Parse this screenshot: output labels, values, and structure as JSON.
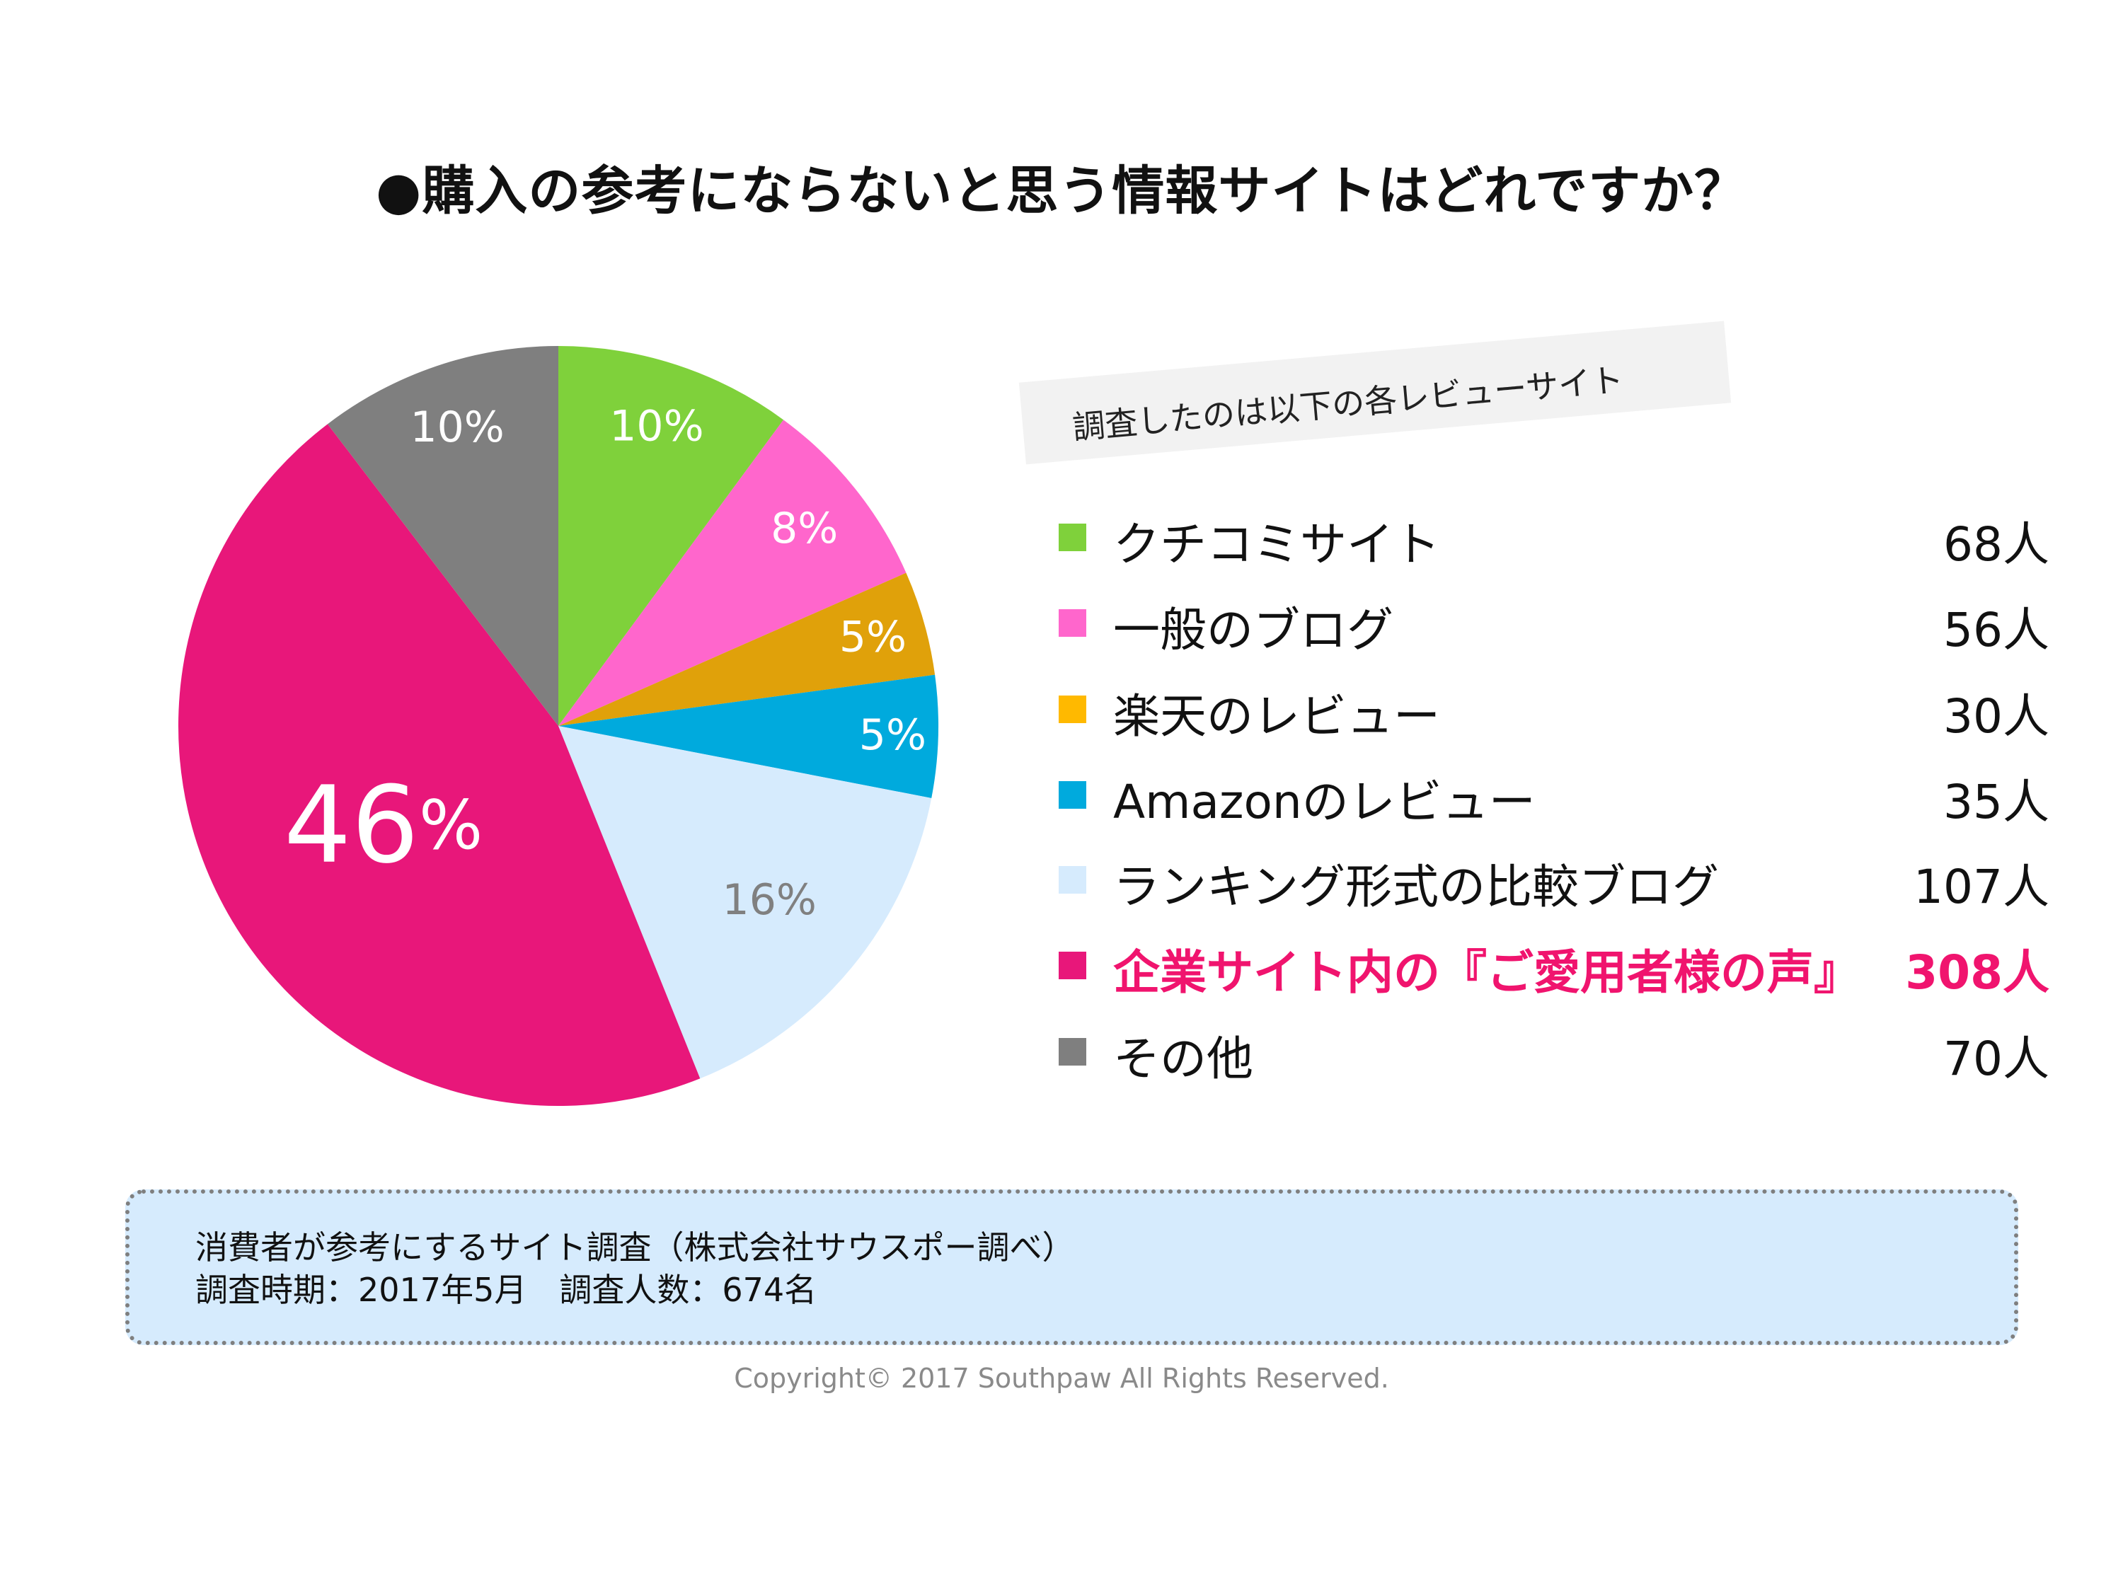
{
  "chart_data": {
    "type": "pie",
    "title": "●購入の参考にならないと思う情報サイトはどれですか？",
    "categories": [
      "クチコミサイト",
      "一般のブログ",
      "楽天のレビュー",
      "Amazonのレビュー",
      "ランキング形式の比較ブログ",
      "企業サイト内の『ご愛用者様の声』",
      "その他"
    ],
    "values": [
      68,
      56,
      30,
      35,
      107,
      308,
      70
    ],
    "value_labels": [
      "68人",
      "56人",
      "30人",
      "35人",
      "107人",
      "308人",
      "70人"
    ],
    "percent_labels": [
      "10%",
      "8%",
      "5%",
      "5%",
      "16%",
      "46",
      "10%"
    ],
    "percent_suffix_big": "%",
    "colors": [
      "#7fd13b",
      "#ff66cc",
      "#e0a10a",
      "#00aadd",
      "#d6ebfd",
      "#e8177a",
      "#7f7f7f"
    ],
    "legend_colors": [
      "#7fd13b",
      "#ff66cc",
      "#ffb900",
      "#00aadd",
      "#d6ebfd",
      "#e8177a",
      "#7f7f7f"
    ],
    "label_colors": [
      "#ffffff",
      "#ffffff",
      "#ffffff",
      "#ffffff",
      "#808080",
      "#ffffff",
      "#ffffff"
    ],
    "highlight_index": 5,
    "legend_placement": "right"
  },
  "banner": "調査したのは以下の各レビューサイト",
  "note": {
    "line1": "消費者が参考にするサイト調査（株式会社サウスポー調べ）",
    "line2": "調査時期：2017年5月　調査人数：674名"
  },
  "copyright": "Copyright© 2017 Southpaw All Rights Reserved."
}
